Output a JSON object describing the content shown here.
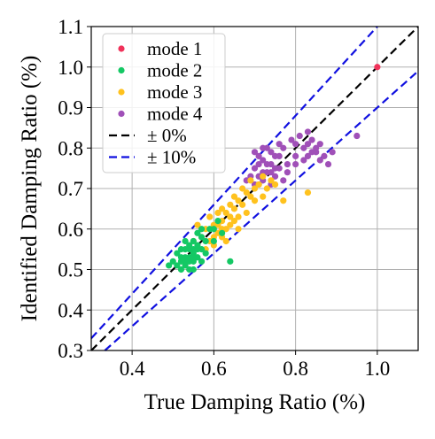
{
  "chart_data": {
    "type": "scatter",
    "title": "",
    "xlabel": "True Damping Ratio (%)",
    "ylabel": "Identified Damping Ratio (%)",
    "xlim": [
      0.3,
      1.1
    ],
    "ylim": [
      0.3,
      1.1
    ],
    "grid": true,
    "legend_position": "top-left",
    "x_ticks": [
      "0.4",
      "0.6",
      "0.8",
      "1.0"
    ],
    "y_ticks": [
      "0.3",
      "0.4",
      "0.5",
      "0.6",
      "0.7",
      "0.8",
      "0.9",
      "1.0",
      "1.1"
    ],
    "series": [
      {
        "name": "mode 1",
        "color": "#f0325a",
        "points": [
          [
            1.0,
            1.0
          ]
        ]
      },
      {
        "name": "mode 2",
        "color": "#14c864",
        "points": [
          [
            0.52,
            0.53
          ],
          [
            0.53,
            0.52
          ],
          [
            0.54,
            0.55
          ],
          [
            0.55,
            0.54
          ],
          [
            0.51,
            0.51
          ],
          [
            0.56,
            0.56
          ],
          [
            0.53,
            0.55
          ],
          [
            0.55,
            0.52
          ],
          [
            0.57,
            0.58
          ],
          [
            0.54,
            0.53
          ],
          [
            0.52,
            0.55
          ],
          [
            0.56,
            0.53
          ],
          [
            0.5,
            0.52
          ],
          [
            0.53,
            0.51
          ],
          [
            0.55,
            0.57
          ],
          [
            0.58,
            0.57
          ],
          [
            0.54,
            0.5
          ],
          [
            0.57,
            0.55
          ],
          [
            0.52,
            0.5
          ],
          [
            0.55,
            0.55
          ],
          [
            0.53,
            0.57
          ],
          [
            0.59,
            0.6
          ],
          [
            0.56,
            0.59
          ],
          [
            0.51,
            0.54
          ],
          [
            0.54,
            0.56
          ],
          [
            0.58,
            0.54
          ],
          [
            0.6,
            0.57
          ],
          [
            0.55,
            0.5
          ],
          [
            0.53,
            0.53
          ],
          [
            0.57,
            0.52
          ],
          [
            0.49,
            0.51
          ],
          [
            0.54,
            0.52
          ],
          [
            0.56,
            0.55
          ],
          [
            0.52,
            0.52
          ],
          [
            0.55,
            0.53
          ],
          [
            0.62,
            0.59
          ],
          [
            0.61,
            0.62
          ],
          [
            0.64,
            0.52
          ],
          [
            0.6,
            0.6
          ],
          [
            0.57,
            0.6
          ]
        ]
      },
      {
        "name": "mode 3",
        "color": "#ffc21e",
        "points": [
          [
            0.58,
            0.6
          ],
          [
            0.6,
            0.58
          ],
          [
            0.62,
            0.62
          ],
          [
            0.63,
            0.6
          ],
          [
            0.59,
            0.57
          ],
          [
            0.61,
            0.64
          ],
          [
            0.64,
            0.63
          ],
          [
            0.65,
            0.65
          ],
          [
            0.6,
            0.61
          ],
          [
            0.62,
            0.58
          ],
          [
            0.66,
            0.67
          ],
          [
            0.67,
            0.66
          ],
          [
            0.68,
            0.69
          ],
          [
            0.63,
            0.64
          ],
          [
            0.57,
            0.58
          ],
          [
            0.61,
            0.59
          ],
          [
            0.64,
            0.61
          ],
          [
            0.66,
            0.63
          ],
          [
            0.69,
            0.68
          ],
          [
            0.7,
            0.67
          ],
          [
            0.71,
            0.71
          ],
          [
            0.65,
            0.68
          ],
          [
            0.62,
            0.65
          ],
          [
            0.59,
            0.63
          ],
          [
            0.67,
            0.7
          ],
          [
            0.72,
            0.68
          ],
          [
            0.68,
            0.64
          ],
          [
            0.6,
            0.56
          ],
          [
            0.58,
            0.55
          ],
          [
            0.63,
            0.57
          ],
          [
            0.74,
            0.72
          ],
          [
            0.73,
            0.7
          ],
          [
            0.66,
            0.6
          ],
          [
            0.77,
            0.67
          ],
          [
            0.72,
            0.73
          ],
          [
            0.83,
            0.69
          ],
          [
            0.56,
            0.61
          ],
          [
            0.55,
            0.57
          ],
          [
            0.69,
            0.72
          ],
          [
            0.64,
            0.66
          ],
          [
            0.7,
            0.7
          ],
          [
            0.75,
            0.71
          ],
          [
            0.62,
            0.6
          ],
          [
            0.61,
            0.61
          ],
          [
            0.65,
            0.62
          ]
        ]
      },
      {
        "name": "mode 4",
        "color": "#a050b8",
        "points": [
          [
            0.7,
            0.75
          ],
          [
            0.72,
            0.77
          ],
          [
            0.74,
            0.76
          ],
          [
            0.71,
            0.73
          ],
          [
            0.73,
            0.74
          ],
          [
            0.75,
            0.78
          ],
          [
            0.76,
            0.75
          ],
          [
            0.72,
            0.72
          ],
          [
            0.7,
            0.71
          ],
          [
            0.74,
            0.79
          ],
          [
            0.77,
            0.8
          ],
          [
            0.71,
            0.78
          ],
          [
            0.73,
            0.76
          ],
          [
            0.69,
            0.73
          ],
          [
            0.75,
            0.73
          ],
          [
            0.78,
            0.76
          ],
          [
            0.72,
            0.8
          ],
          [
            0.76,
            0.81
          ],
          [
            0.74,
            0.71
          ],
          [
            0.71,
            0.76
          ],
          [
            0.8,
            0.78
          ],
          [
            0.82,
            0.8
          ],
          [
            0.84,
            0.82
          ],
          [
            0.85,
            0.79
          ],
          [
            0.83,
            0.78
          ],
          [
            0.86,
            0.81
          ],
          [
            0.81,
            0.83
          ],
          [
            0.83,
            0.84
          ],
          [
            0.87,
            0.78
          ],
          [
            0.88,
            0.76
          ],
          [
            0.85,
            0.8
          ],
          [
            0.79,
            0.82
          ],
          [
            0.8,
            0.81
          ],
          [
            0.82,
            0.77
          ],
          [
            0.84,
            0.79
          ],
          [
            0.86,
            0.77
          ],
          [
            0.95,
            0.83
          ],
          [
            0.89,
            0.79
          ],
          [
            0.77,
            0.72
          ],
          [
            0.73,
            0.8
          ],
          [
            0.7,
            0.79
          ],
          [
            0.68,
            0.72
          ],
          [
            0.75,
            0.75
          ],
          [
            0.72,
            0.74
          ],
          [
            0.78,
            0.74
          ],
          [
            0.76,
            0.78
          ],
          [
            0.74,
            0.74
          ],
          [
            0.71,
            0.71
          ],
          [
            0.8,
            0.76
          ],
          [
            0.83,
            0.81
          ]
        ]
      }
    ],
    "reference_lines": [
      {
        "name": "± 0%",
        "color": "#000000",
        "slope": 1.0,
        "dash": "dashed"
      },
      {
        "name": "± 10%",
        "color": "#1010e0",
        "slopes": [
          1.1,
          0.9
        ],
        "dash": "dashed"
      }
    ]
  }
}
